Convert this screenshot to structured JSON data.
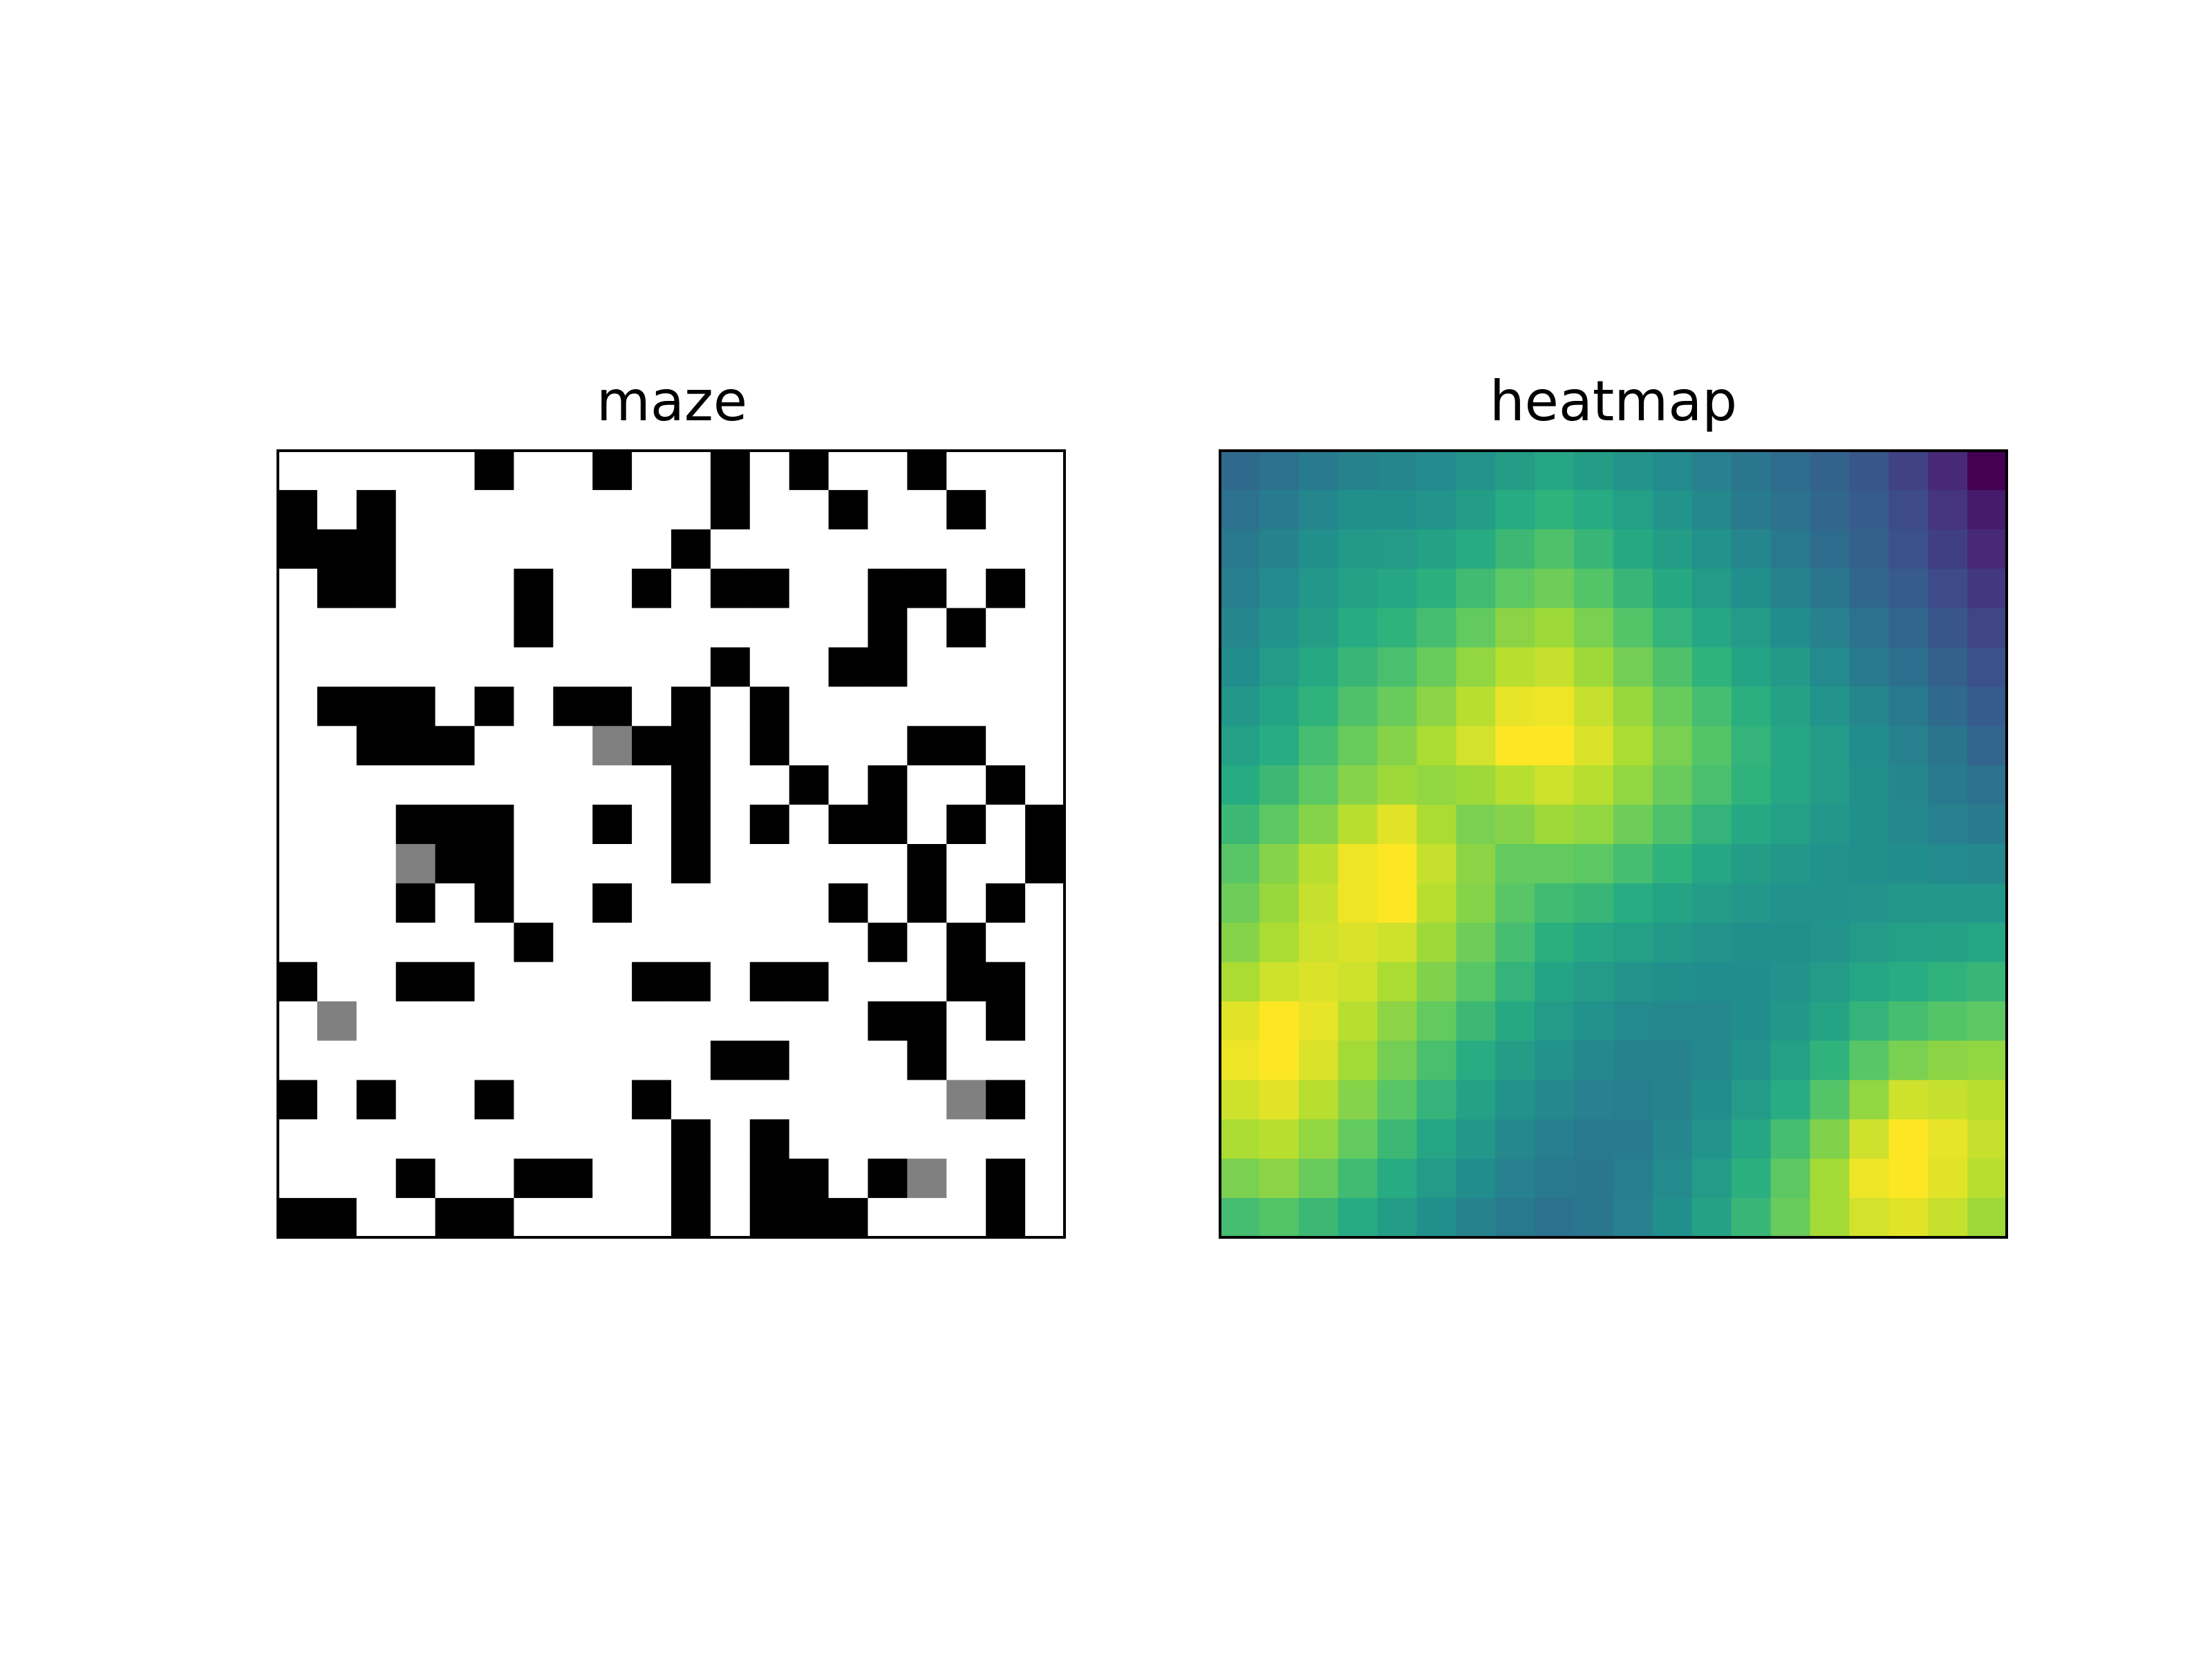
{
  "chart_data": [
    {
      "type": "heatmap",
      "title": "maze",
      "colormap": "gray_r",
      "vmin": 0,
      "vmax": 1,
      "legend": "none",
      "grid": false,
      "xlabel": "",
      "ylabel": "",
      "rows": 20,
      "cols": 20,
      "values": [
        [
          0,
          0,
          0,
          0,
          0,
          1,
          0,
          0,
          1,
          0,
          0,
          1,
          0,
          1,
          0,
          0,
          1,
          0,
          0,
          0
        ],
        [
          1,
          0,
          1,
          0,
          0,
          0,
          0,
          0,
          0,
          0,
          0,
          1,
          0,
          0,
          1,
          0,
          0,
          1,
          0,
          0
        ],
        [
          1,
          1,
          1,
          0,
          0,
          0,
          0,
          0,
          0,
          0,
          1,
          0,
          0,
          0,
          0,
          0,
          0,
          0,
          0,
          0
        ],
        [
          0,
          1,
          1,
          0,
          0,
          0,
          1,
          0,
          0,
          1,
          0,
          1,
          1,
          0,
          0,
          1,
          1,
          0,
          1,
          0
        ],
        [
          0,
          0,
          0,
          0,
          0,
          0,
          1,
          0,
          0,
          0,
          0,
          0,
          0,
          0,
          0,
          1,
          0,
          1,
          0,
          0
        ],
        [
          0,
          0,
          0,
          0,
          0,
          0,
          0,
          0,
          0,
          0,
          0,
          1,
          0,
          0,
          1,
          1,
          0,
          0,
          0,
          0
        ],
        [
          0,
          1,
          1,
          1,
          0,
          1,
          0,
          1,
          1,
          0,
          1,
          0,
          1,
          0,
          0,
          0,
          0,
          0,
          0,
          0
        ],
        [
          0,
          0,
          1,
          1,
          1,
          0,
          0,
          0,
          0.5,
          1,
          1,
          0,
          1,
          0,
          0,
          0,
          1,
          1,
          0,
          0
        ],
        [
          0,
          0,
          0,
          0,
          0,
          0,
          0,
          0,
          0,
          0,
          1,
          0,
          0,
          1,
          0,
          1,
          0,
          0,
          1,
          0
        ],
        [
          0,
          0,
          0,
          1,
          1,
          1,
          0,
          0,
          1,
          0,
          1,
          0,
          1,
          0,
          1,
          1,
          0,
          1,
          0,
          1
        ],
        [
          0,
          0,
          0,
          0.5,
          1,
          1,
          0,
          0,
          0,
          0,
          1,
          0,
          0,
          0,
          0,
          0,
          1,
          0,
          0,
          1
        ],
        [
          0,
          0,
          0,
          1,
          0,
          1,
          0,
          0,
          1,
          0,
          0,
          0,
          0,
          0,
          1,
          0,
          1,
          0,
          1,
          0
        ],
        [
          0,
          0,
          0,
          0,
          0,
          0,
          1,
          0,
          0,
          0,
          0,
          0,
          0,
          0,
          0,
          1,
          0,
          1,
          0,
          0
        ],
        [
          1,
          0,
          0,
          1,
          1,
          0,
          0,
          0,
          0,
          1,
          1,
          0,
          1,
          1,
          0,
          0,
          0,
          1,
          1,
          0
        ],
        [
          0,
          0.5,
          0,
          0,
          0,
          0,
          0,
          0,
          0,
          0,
          0,
          0,
          0,
          0,
          0,
          1,
          1,
          0,
          1,
          0
        ],
        [
          0,
          0,
          0,
          0,
          0,
          0,
          0,
          0,
          0,
          0,
          0,
          1,
          1,
          0,
          0,
          0,
          1,
          0,
          0,
          0
        ],
        [
          1,
          0,
          1,
          0,
          0,
          1,
          0,
          0,
          0,
          1,
          0,
          0,
          0,
          0,
          0,
          0,
          0,
          0.5,
          1,
          0
        ],
        [
          0,
          0,
          0,
          0,
          0,
          0,
          0,
          0,
          0,
          0,
          1,
          0,
          1,
          0,
          0,
          0,
          0,
          0,
          0,
          0
        ],
        [
          0,
          0,
          0,
          1,
          0,
          0,
          1,
          1,
          0,
          0,
          1,
          0,
          1,
          1,
          0,
          1,
          0.5,
          0,
          1,
          0
        ],
        [
          1,
          1,
          0,
          0,
          1,
          1,
          0,
          0,
          0,
          0,
          1,
          0,
          1,
          1,
          1,
          0,
          0,
          0,
          1,
          0
        ]
      ]
    },
    {
      "type": "heatmap",
      "title": "heatmap",
      "colormap": "viridis",
      "vmin": 0,
      "vmax": 1,
      "legend": "none",
      "grid": false,
      "xlabel": "",
      "ylabel": "",
      "rows": 20,
      "cols": 20,
      "values": [
        [
          0.35,
          0.38,
          0.42,
          0.45,
          0.46,
          0.48,
          0.52,
          0.56,
          0.6,
          0.56,
          0.52,
          0.48,
          0.44,
          0.4,
          0.36,
          0.32,
          0.27,
          0.2,
          0.12,
          0.0
        ],
        [
          0.38,
          0.42,
          0.46,
          0.5,
          0.5,
          0.52,
          0.56,
          0.62,
          0.65,
          0.62,
          0.57,
          0.52,
          0.47,
          0.42,
          0.38,
          0.34,
          0.29,
          0.23,
          0.16,
          0.08
        ],
        [
          0.41,
          0.45,
          0.5,
          0.54,
          0.55,
          0.58,
          0.62,
          0.68,
          0.72,
          0.67,
          0.61,
          0.56,
          0.51,
          0.46,
          0.41,
          0.36,
          0.31,
          0.25,
          0.19,
          0.12
        ],
        [
          0.43,
          0.48,
          0.53,
          0.58,
          0.6,
          0.64,
          0.69,
          0.75,
          0.78,
          0.73,
          0.67,
          0.61,
          0.55,
          0.5,
          0.45,
          0.4,
          0.34,
          0.29,
          0.23,
          0.17
        ],
        [
          0.46,
          0.51,
          0.56,
          0.62,
          0.65,
          0.7,
          0.76,
          0.83,
          0.86,
          0.8,
          0.73,
          0.66,
          0.6,
          0.55,
          0.49,
          0.44,
          0.38,
          0.33,
          0.27,
          0.21
        ],
        [
          0.49,
          0.55,
          0.61,
          0.67,
          0.71,
          0.77,
          0.84,
          0.9,
          0.92,
          0.86,
          0.79,
          0.72,
          0.65,
          0.59,
          0.54,
          0.48,
          0.42,
          0.37,
          0.31,
          0.25
        ],
        [
          0.53,
          0.59,
          0.65,
          0.72,
          0.77,
          0.83,
          0.9,
          0.97,
          0.98,
          0.92,
          0.85,
          0.77,
          0.7,
          0.64,
          0.58,
          0.52,
          0.46,
          0.41,
          0.35,
          0.29
        ],
        [
          0.57,
          0.63,
          0.7,
          0.77,
          0.82,
          0.88,
          0.94,
          1.0,
          1.0,
          0.95,
          0.88,
          0.8,
          0.73,
          0.66,
          0.6,
          0.55,
          0.49,
          0.44,
          0.39,
          0.33
        ],
        [
          0.62,
          0.68,
          0.75,
          0.82,
          0.86,
          0.84,
          0.86,
          0.9,
          0.93,
          0.9,
          0.84,
          0.77,
          0.71,
          0.65,
          0.6,
          0.55,
          0.5,
          0.46,
          0.42,
          0.38
        ],
        [
          0.68,
          0.75,
          0.82,
          0.9,
          0.96,
          0.88,
          0.8,
          0.82,
          0.86,
          0.84,
          0.78,
          0.72,
          0.66,
          0.61,
          0.57,
          0.53,
          0.5,
          0.47,
          0.44,
          0.42
        ],
        [
          0.74,
          0.82,
          0.9,
          0.98,
          1.0,
          0.92,
          0.83,
          0.76,
          0.76,
          0.75,
          0.7,
          0.65,
          0.6,
          0.56,
          0.53,
          0.51,
          0.5,
          0.49,
          0.48,
          0.47
        ],
        [
          0.78,
          0.85,
          0.92,
          0.98,
          1.0,
          0.9,
          0.82,
          0.74,
          0.69,
          0.67,
          0.63,
          0.59,
          0.56,
          0.53,
          0.51,
          0.51,
          0.52,
          0.53,
          0.53,
          0.53
        ],
        [
          0.82,
          0.88,
          0.93,
          0.95,
          0.93,
          0.86,
          0.78,
          0.7,
          0.64,
          0.6,
          0.57,
          0.54,
          0.52,
          0.5,
          0.5,
          0.52,
          0.55,
          0.57,
          0.58,
          0.6
        ],
        [
          0.88,
          0.93,
          0.95,
          0.93,
          0.88,
          0.81,
          0.74,
          0.66,
          0.59,
          0.55,
          0.52,
          0.5,
          0.49,
          0.49,
          0.51,
          0.55,
          0.6,
          0.63,
          0.65,
          0.67
        ],
        [
          0.96,
          1.0,
          0.97,
          0.9,
          0.83,
          0.76,
          0.68,
          0.61,
          0.55,
          0.51,
          0.48,
          0.47,
          0.47,
          0.49,
          0.53,
          0.59,
          0.66,
          0.7,
          0.73,
          0.75
        ],
        [
          0.98,
          1.0,
          0.95,
          0.87,
          0.79,
          0.71,
          0.63,
          0.56,
          0.51,
          0.47,
          0.45,
          0.45,
          0.47,
          0.51,
          0.57,
          0.65,
          0.74,
          0.8,
          0.83,
          0.84
        ],
        [
          0.93,
          0.96,
          0.9,
          0.82,
          0.74,
          0.66,
          0.58,
          0.51,
          0.47,
          0.44,
          0.43,
          0.45,
          0.49,
          0.55,
          0.63,
          0.73,
          0.84,
          0.93,
          0.92,
          0.9
        ],
        [
          0.88,
          0.9,
          0.84,
          0.76,
          0.68,
          0.6,
          0.53,
          0.47,
          0.43,
          0.41,
          0.42,
          0.46,
          0.52,
          0.6,
          0.7,
          0.81,
          0.93,
          1.0,
          0.97,
          0.92
        ],
        [
          0.8,
          0.83,
          0.77,
          0.69,
          0.62,
          0.55,
          0.49,
          0.44,
          0.41,
          0.4,
          0.43,
          0.48,
          0.55,
          0.64,
          0.75,
          0.87,
          0.98,
          1.0,
          0.96,
          0.9
        ],
        [
          0.7,
          0.73,
          0.68,
          0.62,
          0.56,
          0.5,
          0.45,
          0.41,
          0.38,
          0.4,
          0.44,
          0.5,
          0.58,
          0.67,
          0.77,
          0.87,
          0.94,
          0.96,
          0.92,
          0.86
        ]
      ]
    }
  ]
}
